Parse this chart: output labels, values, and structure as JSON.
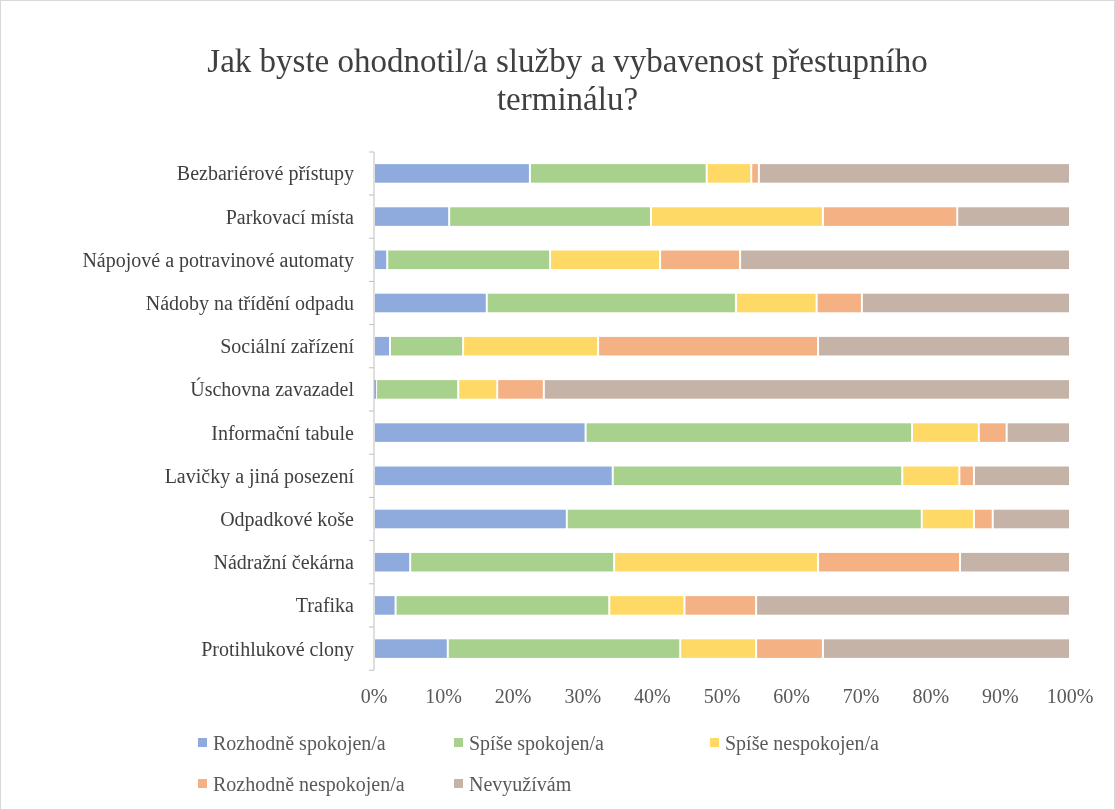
{
  "chart_data": {
    "type": "bar",
    "orientation": "horizontal",
    "stacked": true,
    "title": "Jak byste ohodnotil/a služby a vybavenost přestupního terminálu?",
    "categories": [
      "Bezbariérové přístupy",
      "Parkovací místa",
      "Nápojové a potravinové automaty",
      "Nádoby na třídění odpadu",
      "Sociální zařízení",
      "Úschovna zavazadel",
      "Informační tabule",
      "Lavičky a jiná posezení",
      "Odpadkové koše",
      "Nádražní čekárna",
      "Trafika",
      "Protihlukové clony"
    ],
    "series": [
      {
        "name": "Rozhodně spokojen/a",
        "color": "#8faadc",
        "values": [
          22.4,
          10.8,
          1.9,
          16.2,
          2.3,
          0.3,
          30.4,
          34.3,
          27.7,
          5.2,
          3.1,
          10.6
        ]
      },
      {
        "name": "Spíše spokojen/a",
        "color": "#a9d18e",
        "values": [
          25.4,
          29,
          23.4,
          35.8,
          10.5,
          11.8,
          46.9,
          41.6,
          51,
          29.3,
          30.7,
          33.4
        ]
      },
      {
        "name": "Spíše nespokojen/a",
        "color": "#ffd966",
        "values": [
          6.4,
          24.7,
          15.8,
          11.6,
          19.4,
          5.6,
          9.6,
          8.2,
          7.5,
          29.3,
          10.8,
          10.9
        ]
      },
      {
        "name": "Rozhodně nespokojen/a",
        "color": "#f4b183",
        "values": [
          1.1,
          19.3,
          11.5,
          6.5,
          31.6,
          6.7,
          4,
          2.1,
          2.7,
          20.4,
          10.3,
          9.6
        ]
      },
      {
        "name": "Nevyužívám",
        "color": "#c5b3a7",
        "values": [
          44.7,
          16.2,
          47.4,
          29.9,
          36.2,
          75.6,
          9.1,
          13.8,
          11.1,
          15.8,
          45.1,
          35.5
        ]
      }
    ],
    "xlim": [
      0,
      100
    ],
    "xticks": [
      {
        "value": 0,
        "label": "0%"
      },
      {
        "value": 10,
        "label": "10%"
      },
      {
        "value": 20,
        "label": "20%"
      },
      {
        "value": 30,
        "label": "30%"
      },
      {
        "value": 40,
        "label": "40%"
      },
      {
        "value": 50,
        "label": "50%"
      },
      {
        "value": 60,
        "label": "60%"
      },
      {
        "value": 70,
        "label": "70%"
      },
      {
        "value": 80,
        "label": "80%"
      },
      {
        "value": 90,
        "label": "90%"
      },
      {
        "value": 100,
        "label": "100%"
      }
    ],
    "grid": false,
    "legend": "bottom"
  }
}
